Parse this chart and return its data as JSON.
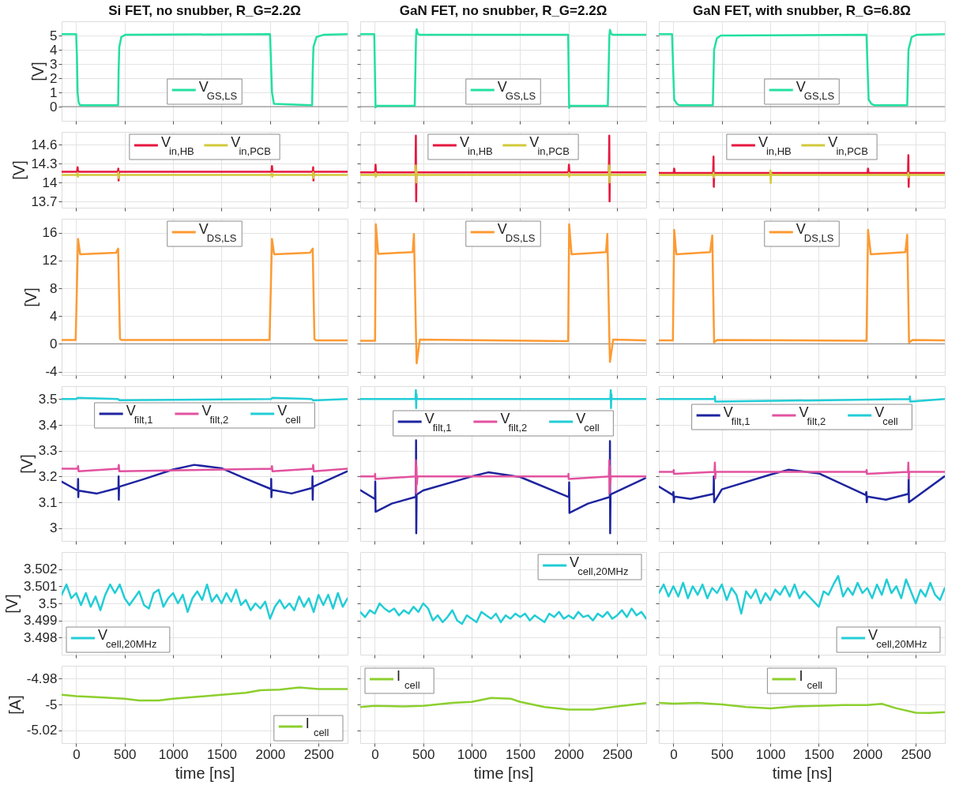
{
  "chart_data": [
    {
      "type": "line",
      "title": "Si FET, no snubber, R_G=2.2Ω",
      "ylabel": "[V]",
      "xlim": [
        -150,
        2800
      ],
      "xticks": [
        0,
        500,
        1000,
        1500,
        2000,
        2500
      ],
      "ylim": [
        -1,
        6
      ],
      "yticks": [
        0,
        1,
        2,
        3,
        4,
        5
      ],
      "grid": true,
      "legend": "bottom",
      "tick_labels": "y",
      "ref_lines": [
        {
          "axis": "y",
          "value": 0,
          "color": "#7f7f7f"
        }
      ],
      "series": [
        {
          "name": "V$_{GS,LS}$",
          "color": "#22e0a0",
          "x": [
            -150,
            0,
            8,
            15,
            25,
            40,
            433,
            438,
            445,
            466,
            507,
            1995,
            2000,
            2008,
            2020,
            2040,
            2434,
            2440,
            2448,
            2480,
            2550,
            2800
          ],
          "values": [
            5.1,
            5.1,
            3.5,
            1.0,
            0.3,
            0.1,
            0.1,
            2.5,
            4.2,
            4.9,
            5.05,
            5.1,
            5.1,
            3.5,
            1.0,
            0.2,
            0.1,
            2.5,
            4.2,
            4.9,
            5.05,
            5.1
          ]
        }
      ]
    },
    {
      "type": "line",
      "title": "GaN FET, no snubber, R_G=2.2Ω",
      "xlim": [
        -150,
        2800
      ],
      "xticks": [
        0,
        500,
        1000,
        1500,
        2000,
        2500
      ],
      "ylim": [
        -1,
        6
      ],
      "yticks": [
        0,
        1,
        2,
        3,
        4,
        5
      ],
      "grid": true,
      "legend": "bottom",
      "tick_labels": false,
      "ref_lines": [
        {
          "axis": "y",
          "value": 0,
          "color": "#7f7f7f"
        }
      ],
      "series": [
        {
          "name": "V$_{GS,LS}$",
          "color": "#22e0a0",
          "x": [
            -150,
            -5,
            8,
            20,
            412,
            426,
            432,
            445,
            465,
            1995,
            2005,
            2015,
            2404,
            2420,
            2426,
            2440,
            2460,
            2800
          ],
          "values": [
            5.1,
            5.1,
            -0.05,
            0.05,
            0.05,
            5.0,
            5.45,
            5.1,
            5.05,
            5.05,
            -0.1,
            0.05,
            0.05,
            5.0,
            5.4,
            5.1,
            5.05,
            5.05
          ]
        }
      ]
    },
    {
      "type": "line",
      "title": "GaN FET, with snubber, R_G=6.8Ω",
      "xlim": [
        -150,
        2800
      ],
      "xticks": [
        0,
        500,
        1000,
        1500,
        2000,
        2500
      ],
      "ylim": [
        -1,
        6
      ],
      "yticks": [
        0,
        1,
        2,
        3,
        4,
        5
      ],
      "grid": true,
      "legend": "bottom",
      "tick_labels": false,
      "ref_lines": [
        {
          "axis": "y",
          "value": 0,
          "color": "#7f7f7f"
        }
      ],
      "series": [
        {
          "name": "V$_{GS,LS}$",
          "color": "#22e0a0",
          "x": [
            -150,
            -14,
            8,
            36,
            60,
            407,
            420,
            448,
            489,
            1992,
            2014,
            2041,
            2070,
            2412,
            2425,
            2458,
            2508,
            2800
          ],
          "values": [
            5.1,
            5.1,
            0.5,
            0.2,
            0.1,
            0.1,
            4.0,
            4.8,
            5.0,
            5.05,
            0.5,
            0.2,
            0.1,
            0.1,
            4.0,
            4.9,
            5.05,
            5.1
          ]
        }
      ]
    },
    {
      "type": "line",
      "ylabel": "[V]",
      "xlim": [
        -150,
        2800
      ],
      "xticks": [
        0,
        500,
        1000,
        1500,
        2000,
        2500
      ],
      "ylim": [
        13.6,
        14.8
      ],
      "yticks": [
        13.7,
        14,
        14.3,
        14.6
      ],
      "grid": true,
      "legend": "top",
      "tick_labels": "y",
      "series": [
        {
          "name": "V$_{in,HB}$",
          "color": "#e6173f",
          "x": [
            -150,
            10,
            15,
            20,
            430,
            435,
            438,
            441,
            445,
            2015,
            2020,
            2025,
            2440,
            2445,
            2448,
            2451,
            2455,
            2800
          ],
          "values": [
            14.17,
            14.17,
            14.24,
            14.17,
            14.17,
            14.22,
            14.03,
            14.17,
            14.17,
            14.17,
            14.26,
            14.17,
            14.17,
            14.24,
            14.03,
            14.17,
            14.17,
            14.17
          ]
        },
        {
          "name": "V$_{in,PCB}$",
          "color": "#d2c93a",
          "x": [
            -150,
            12,
            15,
            18,
            21,
            432,
            435,
            438,
            441,
            2017,
            2020,
            2023,
            2026,
            2442,
            2445,
            2448,
            2451,
            2800
          ],
          "values": [
            14.12,
            14.12,
            14.15,
            14.09,
            14.12,
            14.12,
            14.16,
            14.07,
            14.12,
            14.12,
            14.15,
            14.09,
            14.12,
            14.12,
            14.16,
            14.07,
            14.12,
            14.12
          ]
        }
      ]
    },
    {
      "type": "line",
      "xlim": [
        -150,
        2800
      ],
      "xticks": [
        0,
        500,
        1000,
        1500,
        2000,
        2500
      ],
      "ylim": [
        13.6,
        14.8
      ],
      "yticks": [
        13.7,
        14,
        14.3,
        14.6
      ],
      "grid": true,
      "legend": "top",
      "tick_labels": false,
      "series": [
        {
          "name": "V$_{in,HB}$",
          "color": "#e6173f",
          "x": [
            -150,
            3,
            8,
            13,
            420,
            424,
            427,
            430,
            434,
            1998,
            2003,
            2008,
            2415,
            2419,
            2422,
            2425,
            2429,
            2800
          ],
          "values": [
            14.16,
            14.16,
            14.28,
            14.16,
            14.16,
            14.74,
            13.7,
            14.16,
            14.16,
            14.16,
            14.28,
            14.16,
            14.16,
            14.74,
            13.7,
            14.16,
            14.16,
            14.16
          ]
        },
        {
          "name": "V$_{in,PCB}$",
          "color": "#d2c93a",
          "x": [
            -150,
            5,
            8,
            11,
            14,
            421,
            424,
            427,
            430,
            433,
            2000,
            2003,
            2006,
            2009,
            2416,
            2419,
            2422,
            2425,
            2428,
            2800
          ],
          "values": [
            14.12,
            14.12,
            14.15,
            14.09,
            14.12,
            14.12,
            14.27,
            14.0,
            14.2,
            14.12,
            14.12,
            14.15,
            14.09,
            14.12,
            14.12,
            14.27,
            14.0,
            14.2,
            14.12,
            14.12
          ]
        }
      ]
    },
    {
      "type": "line",
      "xlim": [
        -150,
        2800
      ],
      "xticks": [
        0,
        500,
        1000,
        1500,
        2000,
        2500
      ],
      "ylim": [
        13.6,
        14.8
      ],
      "yticks": [
        13.7,
        14,
        14.3,
        14.6
      ],
      "grid": true,
      "legend": "top",
      "tick_labels": false,
      "series": [
        {
          "name": "V$_{in,HB}$",
          "color": "#e6173f",
          "x": [
            -150,
            3,
            8,
            13,
            410,
            414,
            417,
            420,
            424,
            2003,
            2008,
            2013,
            2420,
            2424,
            2427,
            2430,
            2434,
            2800
          ],
          "values": [
            14.15,
            14.15,
            14.22,
            14.15,
            14.15,
            14.41,
            13.93,
            14.15,
            14.15,
            14.15,
            14.22,
            14.15,
            14.15,
            14.43,
            13.93,
            14.15,
            14.15,
            14.15
          ]
        },
        {
          "name": "V$_{in,PCB}$",
          "color": "#d2c93a",
          "x": [
            -150,
            412,
            415,
            418,
            421,
            998,
            1001,
            1004,
            1007,
            1010,
            2420,
            2423,
            2426,
            2429,
            2800
          ],
          "values": [
            14.12,
            14.12,
            14.15,
            14.08,
            14.12,
            14.12,
            14.19,
            13.99,
            14.16,
            14.12,
            14.12,
            14.15,
            14.08,
            14.12,
            14.12
          ]
        }
      ]
    },
    {
      "type": "line",
      "ylabel": "[V]",
      "xlim": [
        -150,
        2800
      ],
      "xticks": [
        0,
        500,
        1000,
        1500,
        2000,
        2500
      ],
      "ylim": [
        -4.5,
        18
      ],
      "yticks": [
        -4,
        0,
        4,
        8,
        12,
        16
      ],
      "grid": true,
      "legend": "top",
      "tick_labels": "y",
      "ref_lines": [
        {
          "axis": "y",
          "value": 0,
          "color": "#7f7f7f"
        }
      ],
      "series": [
        {
          "name": "V$_{DS,LS}$",
          "color": "#fd9a33",
          "x": [
            -150,
            -5,
            19,
            41,
            411,
            433,
            452,
            470,
            1995,
            2020,
            2042,
            2412,
            2440,
            2458,
            2475,
            2800
          ],
          "values": [
            0.55,
            0.55,
            15.1,
            12.9,
            13.1,
            13.7,
            0.7,
            0.55,
            0.55,
            15.1,
            12.9,
            13.1,
            13.7,
            0.7,
            0.5,
            0.5
          ]
        }
      ]
    },
    {
      "type": "line",
      "xlim": [
        -150,
        2800
      ],
      "xticks": [
        0,
        500,
        1000,
        1500,
        2000,
        2500
      ],
      "ylim": [
        -4.5,
        18
      ],
      "yticks": [
        -4,
        0,
        4,
        8,
        12,
        16
      ],
      "grid": true,
      "legend": "top",
      "tick_labels": false,
      "ref_lines": [
        {
          "axis": "y",
          "value": 0,
          "color": "#7f7f7f"
        }
      ],
      "series": [
        {
          "name": "V$_{DS,LS}$",
          "color": "#fd9a33",
          "x": [
            -150,
            3,
            11,
            35,
            391,
            404,
            426,
            432,
            465,
            1995,
            2005,
            2030,
            2385,
            2399,
            2420,
            2426,
            2459,
            2800
          ],
          "values": [
            0.45,
            0.45,
            17.2,
            12.95,
            13.2,
            15.8,
            0.7,
            -2.8,
            0.6,
            0.4,
            17.2,
            12.9,
            13.2,
            15.8,
            0.7,
            -2.6,
            0.6,
            0.5
          ]
        }
      ]
    },
    {
      "type": "line",
      "xlim": [
        -150,
        2800
      ],
      "xticks": [
        0,
        500,
        1000,
        1500,
        2000,
        2500
      ],
      "ylim": [
        -4.5,
        18
      ],
      "yticks": [
        -4,
        0,
        4,
        8,
        12,
        16
      ],
      "grid": true,
      "legend": "top",
      "tick_labels": false,
      "ref_lines": [
        {
          "axis": "y",
          "value": 0,
          "color": "#7f7f7f"
        }
      ],
      "series": [
        {
          "name": "V$_{DS,LS}$",
          "color": "#fd9a33",
          "x": [
            -150,
            -5,
            8,
            30,
            379,
            401,
            420,
            448,
            1992,
            2008,
            2036,
            2393,
            2412,
            2431,
            2467,
            2800
          ],
          "values": [
            0.5,
            0.5,
            16.4,
            12.9,
            13.2,
            15.6,
            0.2,
            0.55,
            0.45,
            16.4,
            12.9,
            13.2,
            15.7,
            0.2,
            0.55,
            0.5
          ]
        }
      ]
    },
    {
      "type": "line",
      "ylabel": "[V]",
      "xlim": [
        -150,
        2800
      ],
      "xticks": [
        0,
        500,
        1000,
        1500,
        2000,
        2500
      ],
      "ylim": [
        2.95,
        3.55
      ],
      "yticks": [
        3,
        3.1,
        3.2,
        3.3,
        3.4,
        3.5
      ],
      "grid": true,
      "legend": "top",
      "tick_labels": "y",
      "series": [
        {
          "name": "V$_{filt,1}$",
          "color": "#1e249f",
          "x": [
            -150,
            0,
            18,
            20,
            22,
            25,
            215,
            430,
            436,
            438,
            440,
            443,
            700,
            1000,
            1218,
            1500,
            1720,
            2005,
            2010,
            2012,
            2014,
            2017,
            2222,
            2430,
            2436,
            2438,
            2440,
            2443,
            2795
          ],
          "values": [
            3.18,
            3.149,
            3.146,
            3.19,
            3.12,
            3.145,
            3.134,
            3.155,
            3.158,
            3.2,
            3.11,
            3.16,
            3.19,
            3.227,
            3.245,
            3.232,
            3.196,
            3.152,
            3.15,
            3.19,
            3.12,
            3.148,
            3.134,
            3.155,
            3.158,
            3.2,
            3.11,
            3.16,
            3.22
          ]
        },
        {
          "name": "V$_{filt,2}$",
          "color": "#e2529f",
          "x": [
            -150,
            15,
            20,
            25,
            435,
            440,
            445,
            2015,
            2020,
            2025,
            2440,
            2445,
            2450,
            2800
          ],
          "values": [
            3.23,
            3.23,
            3.24,
            3.22,
            3.23,
            3.245,
            3.22,
            3.23,
            3.24,
            3.22,
            3.23,
            3.245,
            3.22,
            3.23
          ]
        },
        {
          "name": "V$_{cell}$",
          "color": "#22cdd6",
          "x": [
            -150,
            0,
            15,
            430,
            445,
            2010,
            2025,
            2430,
            2445,
            2800
          ],
          "values": [
            3.5,
            3.5,
            3.505,
            3.5,
            3.496,
            3.5,
            3.505,
            3.5,
            3.495,
            3.5
          ]
        }
      ]
    },
    {
      "type": "line",
      "xlim": [
        -150,
        2800
      ],
      "xticks": [
        0,
        500,
        1000,
        1500,
        2000,
        2500
      ],
      "ylim": [
        2.95,
        3.55
      ],
      "yticks": [
        3,
        3.1,
        3.2,
        3.3,
        3.4,
        3.5
      ],
      "grid": true,
      "legend": "top",
      "tick_labels": false,
      "series": [
        {
          "name": "V$_{filt,1}$",
          "color": "#1e249f",
          "x": [
            -150,
            0,
            3,
            5,
            8,
            176,
            413,
            424,
            426,
            428,
            432,
            500,
            1000,
            1170,
            1500,
            2000,
            2003,
            2005,
            2008,
            2200,
            2420,
            2424,
            2426,
            2428,
            2432,
            2788
          ],
          "values": [
            3.147,
            3.113,
            3.113,
            3.18,
            3.063,
            3.095,
            3.12,
            3.12,
            3.34,
            2.98,
            3.13,
            3.146,
            3.2,
            3.216,
            3.198,
            3.12,
            3.12,
            3.177,
            3.059,
            3.095,
            3.12,
            3.12,
            3.337,
            2.98,
            3.13,
            3.193
          ]
        },
        {
          "name": "V$_{filt,2}$",
          "color": "#e2529f",
          "x": [
            -150,
            0,
            3,
            6,
            420,
            424,
            427,
            430,
            434,
            440,
            1995,
            1998,
            2001,
            2415,
            2419,
            2422,
            2425,
            2429,
            2435,
            2800
          ],
          "values": [
            3.2,
            3.2,
            3.21,
            3.19,
            3.2,
            3.263,
            3.135,
            3.24,
            3.17,
            3.2,
            3.2,
            3.21,
            3.19,
            3.2,
            3.263,
            3.135,
            3.24,
            3.17,
            3.2,
            3.2
          ]
        },
        {
          "name": "V$_{cell}$",
          "color": "#22cdd6",
          "x": [
            -150,
            420,
            424,
            427,
            430,
            434,
            2430,
            2434,
            2437,
            2440,
            2444,
            2800
          ],
          "values": [
            3.5,
            3.5,
            3.535,
            3.465,
            3.52,
            3.5,
            3.5,
            3.535,
            3.465,
            3.52,
            3.5,
            3.5
          ]
        }
      ]
    },
    {
      "type": "line",
      "xlim": [
        -150,
        2800
      ],
      "xticks": [
        0,
        500,
        1000,
        1500,
        2000,
        2500
      ],
      "ylim": [
        2.95,
        3.55
      ],
      "yticks": [
        3,
        3.1,
        3.2,
        3.3,
        3.4,
        3.5
      ],
      "grid": true,
      "legend": "top",
      "tick_labels": false,
      "series": [
        {
          "name": "V$_{filt,1}$",
          "color": "#1e249f",
          "x": [
            -150,
            -5,
            0,
            5,
            10,
            176,
            410,
            415,
            417,
            420,
            500,
            1000,
            1185,
            1500,
            1985,
            1990,
            1995,
            2000,
            2192,
            2420,
            2425,
            2427,
            2430,
            2795
          ],
          "values": [
            3.161,
            3.128,
            3.14,
            3.1,
            3.122,
            3.113,
            3.132,
            3.136,
            3.2,
            3.1,
            3.15,
            3.207,
            3.226,
            3.212,
            3.128,
            3.14,
            3.1,
            3.122,
            3.11,
            3.132,
            3.136,
            3.2,
            3.1,
            3.2
          ]
        },
        {
          "name": "V$_{filt,2}$",
          "color": "#e2529f",
          "x": [
            -150,
            0,
            3,
            6,
            424,
            428,
            432,
            436,
            1990,
            1993,
            1996,
            2420,
            2424,
            2428,
            2432,
            2800
          ],
          "values": [
            3.218,
            3.218,
            3.225,
            3.21,
            3.218,
            3.254,
            3.192,
            3.218,
            3.218,
            3.225,
            3.21,
            3.218,
            3.254,
            3.192,
            3.218,
            3.218
          ]
        },
        {
          "name": "V$_{cell}$",
          "color": "#22cdd6",
          "x": [
            -150,
            424,
            428,
            432,
            2436,
            2440,
            2444,
            2800
          ],
          "values": [
            3.5,
            3.5,
            3.51,
            3.49,
            3.5,
            3.51,
            3.49,
            3.5
          ]
        }
      ]
    },
    {
      "type": "line",
      "ylabel": "[V]",
      "xlim": [
        -150,
        2800
      ],
      "xticks": [
        0,
        500,
        1000,
        1500,
        2000,
        2500
      ],
      "ylim": [
        3.497,
        3.503
      ],
      "yticks": [
        3.498,
        3.499,
        3.5,
        3.501,
        3.502
      ],
      "grid": true,
      "legend": "bottom left",
      "tick_labels": "y",
      "x": [
        -150,
        -100,
        -50,
        0,
        50,
        100,
        150,
        200,
        250,
        300,
        350,
        400,
        450,
        500,
        550,
        600,
        650,
        700,
        750,
        800,
        850,
        900,
        950,
        1000,
        1050,
        1100,
        1150,
        1200,
        1250,
        1300,
        1350,
        1400,
        1450,
        1500,
        1550,
        1600,
        1650,
        1700,
        1750,
        1800,
        1850,
        1900,
        1950,
        2000,
        2050,
        2100,
        2150,
        2200,
        2250,
        2300,
        2350,
        2400,
        2450,
        2500,
        2550,
        2600,
        2650,
        2700,
        2750,
        2800
      ],
      "series": [
        {
          "name": "V$_{cell,20MHz}$",
          "color": "#22cdd6",
          "values": [
            3.5005,
            3.5011,
            3.5003,
            3.5006,
            3.4999,
            3.5006,
            3.4998,
            3.5004,
            3.4996,
            3.5005,
            3.5011,
            3.5006,
            3.5011,
            3.5003,
            3.4999,
            3.5003,
            3.5007,
            3.4999,
            3.4997,
            3.5006,
            3.5008,
            3.4998,
            3.5003,
            3.5006,
            3.5,
            3.5005,
            3.4995,
            3.5003,
            3.5007,
            3.5002,
            3.5011,
            3.5001,
            3.5005,
            3.5,
            3.5006,
            3.5001,
            3.5008,
            3.4999,
            3.5002,
            3.4996,
            3.5,
            3.4997,
            3.5001,
            3.4991,
            3.4998,
            3.5002,
            3.4997,
            3.5,
            3.4996,
            3.5004,
            3.4998,
            3.5003,
            3.4995,
            3.5005,
            3.4999,
            3.5005,
            3.4997,
            3.5006,
            3.4998,
            3.5003
          ]
        }
      ]
    },
    {
      "type": "line",
      "xlim": [
        -150,
        2800
      ],
      "xticks": [
        0,
        500,
        1000,
        1500,
        2000,
        2500
      ],
      "ylim": [
        3.497,
        3.503
      ],
      "yticks": [
        3.498,
        3.499,
        3.5,
        3.501,
        3.502
      ],
      "grid": true,
      "legend": "top right",
      "tick_labels": false,
      "x": [
        -150,
        -100,
        -50,
        0,
        50,
        100,
        150,
        200,
        250,
        300,
        350,
        400,
        450,
        500,
        550,
        600,
        650,
        700,
        750,
        800,
        850,
        900,
        950,
        1000,
        1050,
        1100,
        1150,
        1200,
        1250,
        1300,
        1350,
        1400,
        1450,
        1500,
        1550,
        1600,
        1650,
        1700,
        1750,
        1800,
        1850,
        1900,
        1950,
        2000,
        2050,
        2100,
        2150,
        2200,
        2250,
        2300,
        2350,
        2400,
        2450,
        2500,
        2550,
        2600,
        2650,
        2700,
        2750,
        2800
      ],
      "series": [
        {
          "name": "V$_{cell,20MHz}$",
          "color": "#22cdd6",
          "values": [
            3.4995,
            3.4992,
            3.4996,
            3.4994,
            3.5,
            3.4997,
            3.4995,
            3.4997,
            3.4993,
            3.4996,
            3.4994,
            3.4998,
            3.4995,
            3.5,
            3.4997,
            3.499,
            3.4993,
            3.4989,
            3.4992,
            3.4996,
            3.499,
            3.4988,
            3.4993,
            3.4991,
            3.4989,
            3.4995,
            3.4993,
            3.4991,
            3.4994,
            3.4989,
            3.4993,
            3.4991,
            3.4994,
            3.4992,
            3.4994,
            3.499,
            3.4993,
            3.4991,
            3.4989,
            3.4994,
            3.4992,
            3.4995,
            3.4991,
            3.4993,
            3.4991,
            3.4995,
            3.4992,
            3.4993,
            3.499,
            3.4994,
            3.4992,
            3.4995,
            3.4991,
            3.4993,
            3.4996,
            3.4992,
            3.4997,
            3.4993,
            3.4995,
            3.4991
          ]
        }
      ]
    },
    {
      "type": "line",
      "xlim": [
        -150,
        2800
      ],
      "xticks": [
        0,
        500,
        1000,
        1500,
        2000,
        2500
      ],
      "ylim": [
        3.497,
        3.503
      ],
      "yticks": [
        3.498,
        3.499,
        3.5,
        3.501,
        3.502
      ],
      "grid": true,
      "legend": "bottom right",
      "tick_labels": false,
      "x": [
        -150,
        -100,
        -50,
        0,
        50,
        100,
        150,
        200,
        250,
        300,
        350,
        400,
        450,
        500,
        550,
        600,
        650,
        700,
        750,
        800,
        850,
        900,
        950,
        1000,
        1050,
        1100,
        1150,
        1200,
        1250,
        1300,
        1350,
        1400,
        1450,
        1500,
        1550,
        1600,
        1650,
        1700,
        1750,
        1800,
        1850,
        1900,
        1950,
        2000,
        2050,
        2100,
        2150,
        2200,
        2250,
        2300,
        2350,
        2400,
        2450,
        2500,
        2550,
        2600,
        2650,
        2700,
        2750,
        2800
      ],
      "series": [
        {
          "name": "V$_{cell,20MHz}$",
          "color": "#22cdd6",
          "values": [
            3.5006,
            3.5011,
            3.5004,
            3.501,
            3.5004,
            3.5012,
            3.5003,
            3.501,
            3.5005,
            3.5011,
            3.5003,
            3.5009,
            3.5006,
            3.5011,
            3.5002,
            3.5009,
            3.5005,
            3.4994,
            3.5007,
            3.5003,
            3.5008,
            3.5,
            3.5006,
            3.5002,
            3.5008,
            3.5005,
            3.501,
            3.5004,
            3.5011,
            3.5003,
            3.5007,
            3.5004,
            3.5001,
            3.4998,
            3.5007,
            3.5005,
            3.5011,
            3.5016,
            3.5004,
            3.5009,
            3.5005,
            3.5012,
            3.5006,
            3.5009,
            3.5003,
            3.5011,
            3.5005,
            3.5014,
            3.5006,
            3.501,
            3.5003,
            3.5014,
            3.5007,
            3.5,
            3.5008,
            3.5004,
            3.5012,
            3.5005,
            3.5002,
            3.5009
          ]
        }
      ]
    },
    {
      "type": "line",
      "ylabel": "[A]",
      "xlabel": "time [ns]",
      "xlim": [
        -150,
        2800
      ],
      "xticks": [
        0,
        500,
        1000,
        1500,
        2000,
        2500
      ],
      "ylim": [
        -5.03,
        -4.97
      ],
      "yticks": [
        -5.02,
        -5,
        -4.98
      ],
      "grid": true,
      "legend": "bottom right",
      "series": [
        {
          "name": "I$_{cell}$",
          "color": "#8ccf2e",
          "x": [
            -150,
            0,
            250,
            500,
            650,
            850,
            1000,
            1250,
            1500,
            1750,
            1900,
            2100,
            2300,
            2500,
            2800
          ],
          "values": [
            -4.9925,
            -4.9936,
            -4.9945,
            -4.9956,
            -4.997,
            -4.997,
            -4.9956,
            -4.9941,
            -4.9925,
            -4.991,
            -4.989,
            -4.9885,
            -4.9868,
            -4.988,
            -4.988
          ]
        }
      ]
    },
    {
      "type": "line",
      "xlabel": "time [ns]",
      "xlim": [
        -150,
        2800
      ],
      "xticks": [
        0,
        500,
        1000,
        1500,
        2000,
        2500
      ],
      "ylim": [
        -5.03,
        -4.97
      ],
      "yticks": [
        -5.02,
        -5,
        -4.98
      ],
      "grid": true,
      "legend": "top left",
      "tick_labels": "x",
      "series": [
        {
          "name": "I$_{cell}$",
          "color": "#8ccf2e",
          "x": [
            -150,
            0,
            300,
            500,
            800,
            1000,
            1200,
            1400,
            1500,
            1750,
            2000,
            2250,
            2500,
            2800
          ],
          "values": [
            -5.002,
            -5.001,
            -5.0015,
            -5.001,
            -4.9988,
            -4.998,
            -4.995,
            -4.9955,
            -4.998,
            -5.002,
            -5.004,
            -5.004,
            -5.0015,
            -4.999
          ]
        }
      ]
    },
    {
      "type": "line",
      "xlabel": "time [ns]",
      "xlim": [
        -150,
        2800
      ],
      "xticks": [
        0,
        500,
        1000,
        1500,
        2000,
        2500
      ],
      "ylim": [
        -5.03,
        -4.97
      ],
      "yticks": [
        -5.02,
        -5,
        -4.98
      ],
      "grid": true,
      "legend": "top",
      "tick_labels": "x",
      "series": [
        {
          "name": "I$_{cell}$",
          "color": "#8ccf2e",
          "x": [
            -150,
            0,
            250,
            500,
            750,
            1000,
            1250,
            1500,
            1750,
            2000,
            2150,
            2300,
            2500,
            2650,
            2800
          ],
          "values": [
            -4.9988,
            -4.9994,
            -4.9988,
            -5.0,
            -5.002,
            -5.003,
            -5.0015,
            -5.001,
            -5.0005,
            -5.0005,
            -4.9995,
            -5.003,
            -5.0064,
            -5.0066,
            -5.006
          ]
        }
      ]
    }
  ]
}
